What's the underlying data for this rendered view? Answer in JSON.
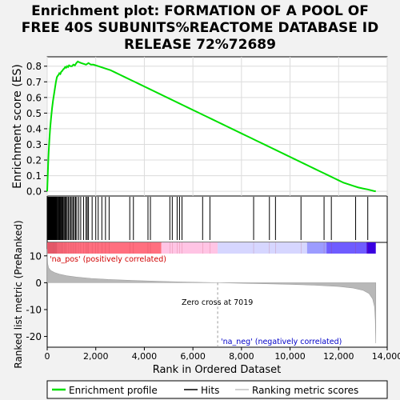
{
  "chart_data": {
    "type": "line",
    "title": "Enrichment plot: FORMATION OF A POOL OF FREE 40S SUBUNITS%REACTOME DATABASE ID RELEASE 72%72689",
    "title_lines": [
      "Enrichment plot: FORMATION OF A POOL OF",
      "FREE 40S SUBUNITS%REACTOME DATABASE ID",
      "RELEASE 72%72689"
    ],
    "xlabel": "Rank in Ordered Dataset",
    "x_ticks": [
      0,
      2000,
      4000,
      6000,
      8000,
      10000,
      12000,
      14000
    ],
    "x_tick_labels": [
      "0",
      "2,000",
      "4,000",
      "6,000",
      "8,000",
      "10,000",
      "12,000",
      "14,000"
    ],
    "xlim": [
      0,
      14000
    ],
    "n_genes": 13530,
    "es_panel": {
      "ylabel": "Enrichment score (ES)",
      "ylim": [
        -0.03,
        0.86
      ],
      "y_ticks": [
        0.0,
        0.1,
        0.2,
        0.3,
        0.4,
        0.5,
        0.6,
        0.7,
        0.8
      ],
      "y_tick_labels": [
        "0.0",
        "0.1",
        "0.2",
        "0.3",
        "0.4",
        "0.5",
        "0.6",
        "0.7",
        "0.8"
      ],
      "grid": true,
      "color": "#00e000",
      "points": [
        [
          0,
          0.0
        ],
        [
          20,
          0.09
        ],
        [
          40,
          0.18
        ],
        [
          60,
          0.25
        ],
        [
          90,
          0.33
        ],
        [
          120,
          0.4
        ],
        [
          160,
          0.47
        ],
        [
          200,
          0.53
        ],
        [
          240,
          0.58
        ],
        [
          280,
          0.62
        ],
        [
          320,
          0.66
        ],
        [
          360,
          0.7
        ],
        [
          400,
          0.73
        ],
        [
          440,
          0.74
        ],
        [
          470,
          0.745
        ],
        [
          500,
          0.755
        ],
        [
          540,
          0.75
        ],
        [
          580,
          0.765
        ],
        [
          620,
          0.77
        ],
        [
          660,
          0.78
        ],
        [
          700,
          0.785
        ],
        [
          740,
          0.795
        ],
        [
          780,
          0.79
        ],
        [
          820,
          0.8
        ],
        [
          860,
          0.795
        ],
        [
          900,
          0.805
        ],
        [
          960,
          0.8
        ],
        [
          1020,
          0.8
        ],
        [
          1080,
          0.81
        ],
        [
          1140,
          0.805
        ],
        [
          1200,
          0.82
        ],
        [
          1260,
          0.83
        ],
        [
          1320,
          0.825
        ],
        [
          1400,
          0.82
        ],
        [
          1500,
          0.815
        ],
        [
          1600,
          0.81
        ],
        [
          1700,
          0.82
        ],
        [
          1800,
          0.81
        ],
        [
          1900,
          0.81
        ],
        [
          2000,
          0.805
        ],
        [
          2100,
          0.8
        ],
        [
          2200,
          0.795
        ],
        [
          2300,
          0.79
        ],
        [
          2400,
          0.785
        ],
        [
          2600,
          0.775
        ],
        [
          2800,
          0.76
        ],
        [
          3000,
          0.745
        ],
        [
          3200,
          0.73
        ],
        [
          3400,
          0.715
        ],
        [
          3600,
          0.7
        ],
        [
          3800,
          0.685
        ],
        [
          4000,
          0.67
        ],
        [
          4200,
          0.655
        ],
        [
          4400,
          0.64
        ],
        [
          4600,
          0.625
        ],
        [
          4800,
          0.61
        ],
        [
          5000,
          0.595
        ],
        [
          5200,
          0.58
        ],
        [
          5400,
          0.565
        ],
        [
          5600,
          0.55
        ],
        [
          5800,
          0.535
        ],
        [
          6000,
          0.52
        ],
        [
          6200,
          0.505
        ],
        [
          6400,
          0.49
        ],
        [
          6600,
          0.475
        ],
        [
          6800,
          0.46
        ],
        [
          7000,
          0.445
        ],
        [
          7200,
          0.43
        ],
        [
          7400,
          0.415
        ],
        [
          7600,
          0.4
        ],
        [
          7800,
          0.385
        ],
        [
          8000,
          0.37
        ],
        [
          8200,
          0.355
        ],
        [
          8400,
          0.34
        ],
        [
          8600,
          0.325
        ],
        [
          8800,
          0.31
        ],
        [
          9000,
          0.295
        ],
        [
          9200,
          0.28
        ],
        [
          9400,
          0.265
        ],
        [
          9600,
          0.25
        ],
        [
          9800,
          0.235
        ],
        [
          10000,
          0.22
        ],
        [
          10200,
          0.205
        ],
        [
          10400,
          0.19
        ],
        [
          10600,
          0.175
        ],
        [
          10800,
          0.16
        ],
        [
          11000,
          0.145
        ],
        [
          11200,
          0.13
        ],
        [
          11400,
          0.115
        ],
        [
          11600,
          0.1
        ],
        [
          11800,
          0.085
        ],
        [
          12000,
          0.07
        ],
        [
          12200,
          0.055
        ],
        [
          12400,
          0.045
        ],
        [
          12600,
          0.035
        ],
        [
          12800,
          0.025
        ],
        [
          13000,
          0.018
        ],
        [
          13200,
          0.012
        ],
        [
          13350,
          0.006
        ],
        [
          13450,
          0.002
        ],
        [
          13530,
          0.0
        ]
      ]
    },
    "hits": [
      15,
      30,
      45,
      60,
      75,
      90,
      105,
      120,
      135,
      150,
      165,
      180,
      195,
      210,
      225,
      240,
      255,
      270,
      285,
      300,
      315,
      330,
      345,
      360,
      375,
      390,
      420,
      450,
      480,
      510,
      540,
      570,
      600,
      630,
      660,
      700,
      740,
      780,
      820,
      870,
      920,
      970,
      1020,
      1070,
      1120,
      1170,
      1220,
      1300,
      1380,
      1500,
      1600,
      1650,
      1700,
      1850,
      2000,
      2100,
      2250,
      2400,
      2550,
      3400,
      3550,
      4150,
      4250,
      5050,
      5150,
      5350,
      5450,
      5550,
      6400,
      6700,
      8500,
      9150,
      9400,
      10450,
      11400,
      11700,
      12700,
      13200
    ],
    "color_bar": [
      {
        "from": 0,
        "to": 4700,
        "color": "#ff6f7f"
      },
      {
        "from": 4700,
        "to": 7019,
        "color": "#ffc4e4"
      },
      {
        "from": 7019,
        "to": 10700,
        "color": "#d6d6ff"
      },
      {
        "from": 10700,
        "to": 11500,
        "color": "#9c9cff"
      },
      {
        "from": 11500,
        "to": 13150,
        "color": "#6f5cff"
      },
      {
        "from": 13150,
        "to": 13530,
        "color": "#3a00e0"
      }
    ],
    "metric_panel": {
      "ylabel": "Ranked list metric (PreRanked)",
      "ylim": [
        -24,
        15
      ],
      "y_ticks": [
        -20,
        -10,
        0,
        10
      ],
      "y_tick_labels": [
        "-20",
        "-10",
        "0",
        "10"
      ],
      "zero_cross": 7019,
      "zero_cross_label": "Zero cross at 7019",
      "pos_label": "'na_pos' (positively correlated)",
      "neg_label": "'na_neg' (negatively correlated)",
      "metric_points": [
        [
          0,
          12.5
        ],
        [
          20,
          7.0
        ],
        [
          60,
          5.5
        ],
        [
          150,
          4.5
        ],
        [
          300,
          3.8
        ],
        [
          500,
          3.2
        ],
        [
          800,
          2.6
        ],
        [
          1200,
          2.1
        ],
        [
          1800,
          1.6
        ],
        [
          2500,
          1.2
        ],
        [
          3500,
          0.85
        ],
        [
          4500,
          0.55
        ],
        [
          5500,
          0.3
        ],
        [
          6500,
          0.1
        ],
        [
          7019,
          0.0
        ],
        [
          8000,
          -0.2
        ],
        [
          9000,
          -0.4
        ],
        [
          10000,
          -0.6
        ],
        [
          11000,
          -0.9
        ],
        [
          12000,
          -1.4
        ],
        [
          12600,
          -2.0
        ],
        [
          13000,
          -2.8
        ],
        [
          13250,
          -4.0
        ],
        [
          13400,
          -6.0
        ],
        [
          13480,
          -9.0
        ],
        [
          13510,
          -14.0
        ],
        [
          13530,
          -22.5
        ]
      ]
    },
    "legend": {
      "position": "bottom",
      "entries": [
        {
          "label": "Enrichment profile",
          "color": "#00e000"
        },
        {
          "label": "Hits",
          "color": "#000000"
        },
        {
          "label": "Ranking metric scores",
          "color": "#c0c0c0"
        }
      ]
    }
  }
}
